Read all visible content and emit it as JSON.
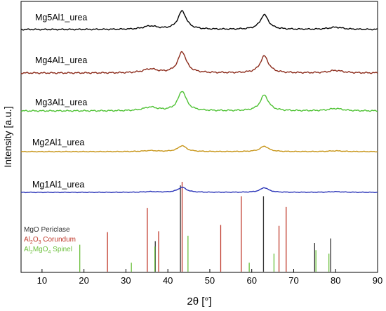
{
  "chart_data": {
    "type": "line",
    "title": "",
    "xlabel": "2θ [°]",
    "ylabel": "Intensity [a.u.]",
    "xlim": [
      5,
      90
    ],
    "xticks": [
      10,
      20,
      30,
      40,
      50,
      60,
      70,
      80,
      90
    ],
    "yticks_shown": false,
    "grid": false,
    "legend": {
      "placement": "bottom-left",
      "entries": [
        {
          "label": "MgO Periclase",
          "color": "#333333"
        },
        {
          "label": "Al2O3 Corundum",
          "color": "#c0392b"
        },
        {
          "label": "Al2MgO4 Spinel",
          "color": "#6abf3a"
        }
      ]
    },
    "series": [
      {
        "name": "Mg5Al1_urea",
        "color": "#000000",
        "peaks": [
          {
            "x": 35.8,
            "h": 0.18
          },
          {
            "x": 43.4,
            "h": 1.0
          },
          {
            "x": 63.0,
            "h": 0.8
          },
          {
            "x": 80.0,
            "h": 0.12
          }
        ]
      },
      {
        "name": "Mg4Al1_urea",
        "color": "#8b2a1a",
        "peaks": [
          {
            "x": 35.8,
            "h": 0.18
          },
          {
            "x": 43.4,
            "h": 1.0
          },
          {
            "x": 63.0,
            "h": 0.8
          },
          {
            "x": 80.0,
            "h": 0.12
          }
        ]
      },
      {
        "name": "Mg3Al1_urea",
        "color": "#4fc234",
        "peaks": [
          {
            "x": 35.8,
            "h": 0.18
          },
          {
            "x": 43.4,
            "h": 1.0
          },
          {
            "x": 63.0,
            "h": 0.8
          },
          {
            "x": 80.0,
            "h": 0.12
          }
        ]
      },
      {
        "name": "Mg2Al1_urea",
        "color": "#c8961a",
        "peaks": [
          {
            "x": 35.8,
            "h": 0.1
          },
          {
            "x": 43.4,
            "h": 0.6
          },
          {
            "x": 63.0,
            "h": 0.55
          },
          {
            "x": 80.0,
            "h": 0.08
          }
        ]
      },
      {
        "name": "Mg1Al1_urea",
        "color": "#2a34b8",
        "peaks": [
          {
            "x": 35.8,
            "h": 0.08
          },
          {
            "x": 43.4,
            "h": 0.6
          },
          {
            "x": 63.0,
            "h": 0.55
          },
          {
            "x": 80.0,
            "h": 0.08
          }
        ]
      }
    ],
    "reference_lines": [
      {
        "phase": "MgO Periclase",
        "color": "#333333",
        "lines": [
          {
            "x": 37.0,
            "h": 0.34
          },
          {
            "x": 43.0,
            "h": 0.96
          },
          {
            "x": 62.8,
            "h": 0.84
          },
          {
            "x": 75.0,
            "h": 0.32
          },
          {
            "x": 78.8,
            "h": 0.37
          }
        ]
      },
      {
        "phase": "Al2O3 Corundum",
        "color": "#c0392b",
        "lines": [
          {
            "x": 25.6,
            "h": 0.44
          },
          {
            "x": 35.1,
            "h": 0.71
          },
          {
            "x": 37.8,
            "h": 0.45
          },
          {
            "x": 43.4,
            "h": 1.0
          },
          {
            "x": 52.6,
            "h": 0.52
          },
          {
            "x": 57.5,
            "h": 0.84
          },
          {
            "x": 66.5,
            "h": 0.51
          },
          {
            "x": 68.2,
            "h": 0.72
          }
        ]
      },
      {
        "phase": "Al2MgO4 Spinel",
        "color": "#6abf3a",
        "lines": [
          {
            "x": 19.0,
            "h": 0.3
          },
          {
            "x": 31.3,
            "h": 0.1
          },
          {
            "x": 36.9,
            "h": 0.28
          },
          {
            "x": 44.8,
            "h": 0.4
          },
          {
            "x": 59.4,
            "h": 0.1
          },
          {
            "x": 65.3,
            "h": 0.2
          },
          {
            "x": 75.3,
            "h": 0.24
          },
          {
            "x": 78.4,
            "h": 0.2
          }
        ]
      }
    ]
  },
  "labels": {
    "legend_mgo": "MgO Periclase",
    "legend_corundum_a": "Al",
    "legend_corundum_s1": "2",
    "legend_corundum_b": "O",
    "legend_corundum_s2": "3",
    "legend_corundum_c": " Corundum",
    "legend_spinel_a": "Al",
    "legend_spinel_s1": "2",
    "legend_spinel_b": "MgO",
    "legend_spinel_s2": "4",
    "legend_spinel_c": " Spinel"
  }
}
